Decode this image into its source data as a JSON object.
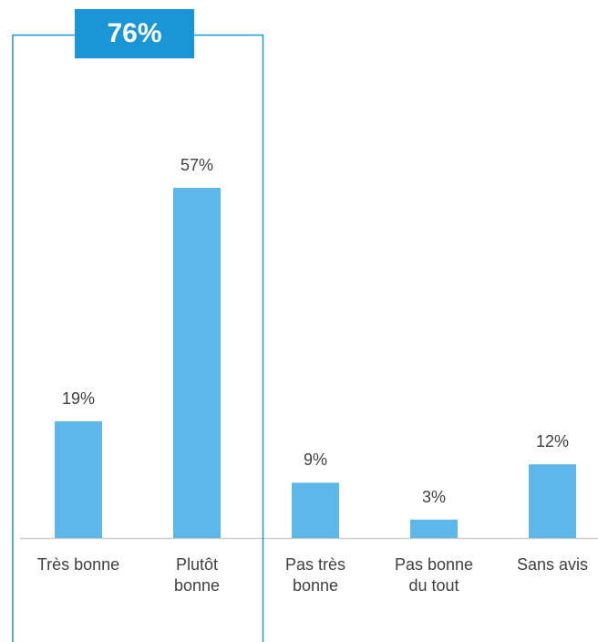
{
  "chart_data": {
    "type": "bar",
    "categories": [
      "Très bonne",
      "Plutôt\nbonne",
      "Pas très\nbonne",
      "Pas bonne\ndu tout",
      "Sans avis"
    ],
    "values": [
      19,
      57,
      9,
      3,
      12
    ],
    "value_labels": [
      "19%",
      "57%",
      "9%",
      "3%",
      "12%"
    ],
    "color": "#5db7e8",
    "ylim": [
      0,
      80
    ],
    "annotation": "76%"
  }
}
